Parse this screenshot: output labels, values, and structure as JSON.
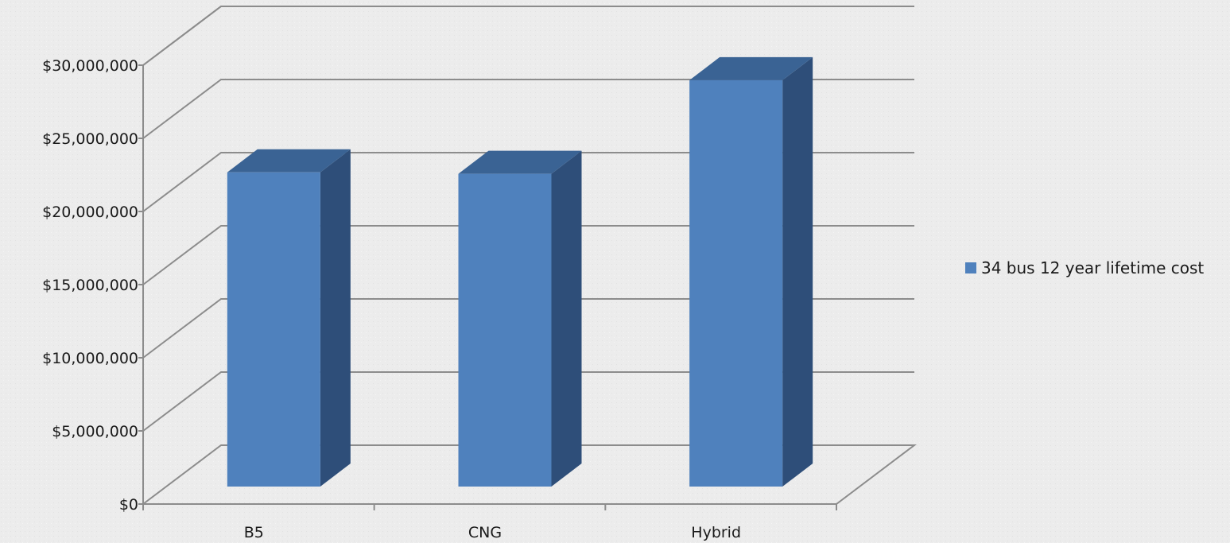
{
  "chart_data": {
    "type": "bar",
    "style": "3d-column",
    "categories": [
      "B5",
      "CNG",
      "Hybrid"
    ],
    "series": [
      {
        "name": "34 bus 12 year lifetime cost",
        "values": [
          23000000,
          22900000,
          29300000
        ]
      }
    ],
    "ylim": [
      0,
      30000000
    ],
    "yticks": [
      0,
      5000000,
      10000000,
      15000000,
      20000000,
      25000000,
      30000000
    ],
    "ytick_labels": [
      "$0",
      "$5,000,000",
      "$10,000,000",
      "$15,000,000",
      "$20,000,000",
      "$25,000,000",
      "$30,000,000"
    ],
    "grid": true,
    "legend_position": "right",
    "colors": {
      "bar_front": "#4f81bd",
      "bar_side": "#2e4e79",
      "bar_top": "#3a6394",
      "grid": "#8c8c8c",
      "background": "#ececec"
    }
  }
}
